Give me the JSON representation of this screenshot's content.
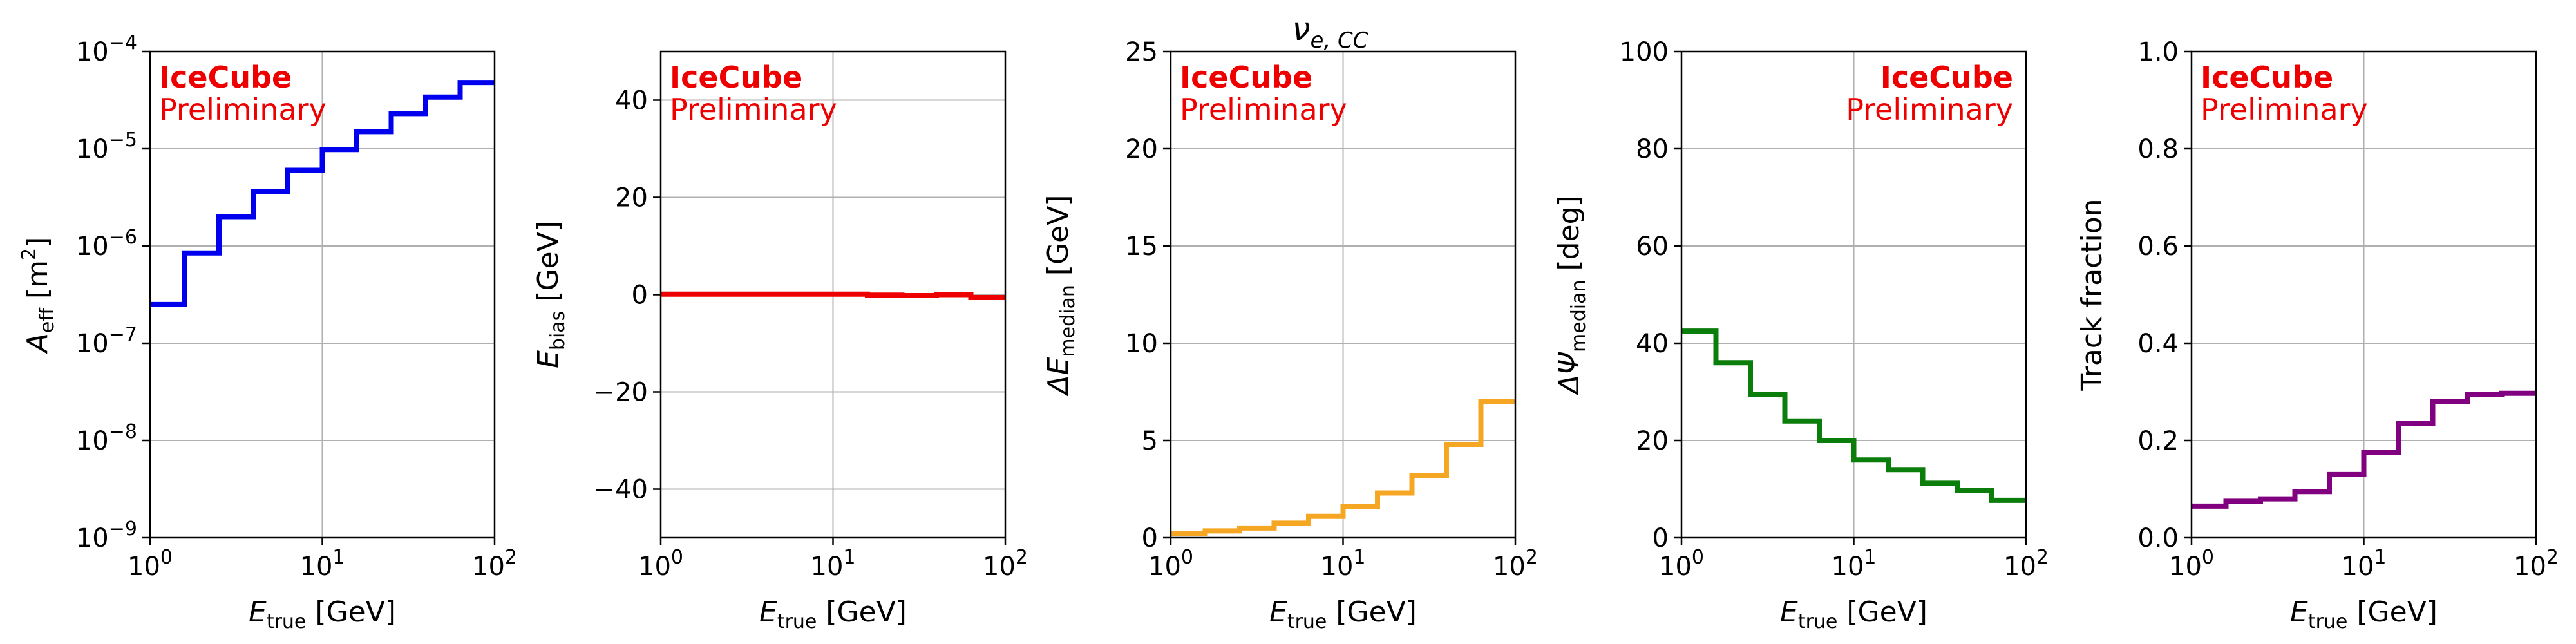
{
  "figure": {
    "title_main": "ν",
    "title_sub": "e, CC",
    "watermark": {
      "line1": "IceCube",
      "line2": "Preliminary",
      "color": "#ee0000"
    }
  },
  "x_axis": {
    "label_main": "E",
    "label_sub": "true",
    "label_unit": " [GeV]",
    "ticks": [
      {
        "value": 1,
        "base": "10",
        "exp": "0"
      },
      {
        "value": 10,
        "base": "10",
        "exp": "1"
      },
      {
        "value": 100,
        "base": "10",
        "exp": "2"
      }
    ]
  },
  "chart_data": [
    {
      "type": "line",
      "step": true,
      "xscale": "log",
      "yscale": "log",
      "xlim": [
        1,
        100
      ],
      "ylim": [
        1e-09,
        0.0001
      ],
      "grid": true,
      "color": "#0000ee",
      "ylabel_main": "A",
      "ylabel_sub": "eff",
      "ylabel_unit": " [m",
      "ylabel_sup": "2",
      "ylabel_close": "]",
      "watermark_position": "top-left",
      "yticks": [
        {
          "value": 1e-09,
          "base": "10",
          "exp": "−9"
        },
        {
          "value": 1e-08,
          "base": "10",
          "exp": "−8"
        },
        {
          "value": 1e-07,
          "base": "10",
          "exp": "−7"
        },
        {
          "value": 1e-06,
          "base": "10",
          "exp": "−6"
        },
        {
          "value": 1e-05,
          "base": "10",
          "exp": "−5"
        },
        {
          "value": 0.0001,
          "base": "10",
          "exp": "−4"
        }
      ],
      "bin_edges": [
        1,
        1.585,
        2.512,
        3.981,
        6.31,
        10,
        15.85,
        25.12,
        39.81,
        63.1,
        100
      ],
      "values": [
        2.5e-07,
        8.5e-07,
        2e-06,
        3.6e-06,
        6e-06,
        9.8e-06,
        1.5e-05,
        2.3e-05,
        3.4e-05,
        4.8e-05
      ]
    },
    {
      "type": "line",
      "step": true,
      "xscale": "log",
      "yscale": "linear",
      "xlim": [
        1,
        100
      ],
      "ylim": [
        -50,
        50
      ],
      "grid": true,
      "color": "#ee0000",
      "ylabel_main": "E",
      "ylabel_sub": "bias",
      "ylabel_unit": " [GeV]",
      "watermark_position": "top-left",
      "yticks": [
        {
          "value": -40,
          "label": "−40"
        },
        {
          "value": -20,
          "label": "−20"
        },
        {
          "value": 0,
          "label": "0"
        },
        {
          "value": 20,
          "label": "20"
        },
        {
          "value": 40,
          "label": "40"
        }
      ],
      "bin_edges": [
        1,
        1.585,
        2.512,
        3.981,
        6.31,
        10,
        15.85,
        25.12,
        39.81,
        63.1,
        100
      ],
      "values": [
        0.1,
        0.1,
        0.1,
        0.1,
        0.1,
        0.1,
        -0.1,
        -0.2,
        0.0,
        -0.6
      ]
    },
    {
      "type": "line",
      "step": true,
      "xscale": "log",
      "yscale": "linear",
      "xlim": [
        1,
        100
      ],
      "ylim": [
        0,
        25
      ],
      "grid": true,
      "color": "#f5a623",
      "ylabel_main": "ΔE",
      "ylabel_sub": "median",
      "ylabel_unit": " [GeV]",
      "watermark_position": "top-left",
      "has_title": true,
      "yticks": [
        {
          "value": 0,
          "label": "0"
        },
        {
          "value": 5,
          "label": "5"
        },
        {
          "value": 10,
          "label": "10"
        },
        {
          "value": 15,
          "label": "15"
        },
        {
          "value": 20,
          "label": "20"
        },
        {
          "value": 25,
          "label": "25"
        }
      ],
      "bin_edges": [
        1,
        1.585,
        2.512,
        3.981,
        6.31,
        10,
        15.85,
        25.12,
        39.81,
        63.1,
        100
      ],
      "values": [
        0.2,
        0.35,
        0.5,
        0.75,
        1.1,
        1.6,
        2.3,
        3.2,
        4.8,
        7.0
      ]
    },
    {
      "type": "line",
      "step": true,
      "xscale": "log",
      "yscale": "linear",
      "xlim": [
        1,
        100
      ],
      "ylim": [
        0,
        100
      ],
      "grid": true,
      "color": "#0a7d0a",
      "ylabel_main": "ΔΨ",
      "ylabel_sub": "median",
      "ylabel_unit": " [deg]",
      "watermark_position": "top-right",
      "yticks": [
        {
          "value": 0,
          "label": "0"
        },
        {
          "value": 20,
          "label": "20"
        },
        {
          "value": 40,
          "label": "40"
        },
        {
          "value": 60,
          "label": "60"
        },
        {
          "value": 80,
          "label": "80"
        },
        {
          "value": 100,
          "label": "100"
        }
      ],
      "bin_edges": [
        1,
        1.585,
        2.512,
        3.981,
        6.31,
        10,
        15.85,
        25.12,
        39.81,
        63.1,
        100
      ],
      "values": [
        42.5,
        36.0,
        29.5,
        24.0,
        20.0,
        16.0,
        14.0,
        11.2,
        9.7,
        7.7
      ]
    },
    {
      "type": "line",
      "step": true,
      "xscale": "log",
      "yscale": "linear",
      "xlim": [
        1,
        100
      ],
      "ylim": [
        0,
        1
      ],
      "grid": true,
      "color": "#800080",
      "ylabel_main": "Track fraction",
      "ylabel_sub": "",
      "ylabel_unit": "",
      "watermark_position": "top-left",
      "yticks": [
        {
          "value": 0,
          "label": "0.0"
        },
        {
          "value": 0.2,
          "label": "0.2"
        },
        {
          "value": 0.4,
          "label": "0.4"
        },
        {
          "value": 0.6,
          "label": "0.6"
        },
        {
          "value": 0.8,
          "label": "0.8"
        },
        {
          "value": 1,
          "label": "1.0"
        }
      ],
      "bin_edges": [
        1,
        1.585,
        2.512,
        3.981,
        6.31,
        10,
        15.85,
        25.12,
        39.81,
        63.1,
        100
      ],
      "values": [
        0.065,
        0.075,
        0.08,
        0.095,
        0.13,
        0.175,
        0.235,
        0.28,
        0.295,
        0.297
      ]
    }
  ]
}
